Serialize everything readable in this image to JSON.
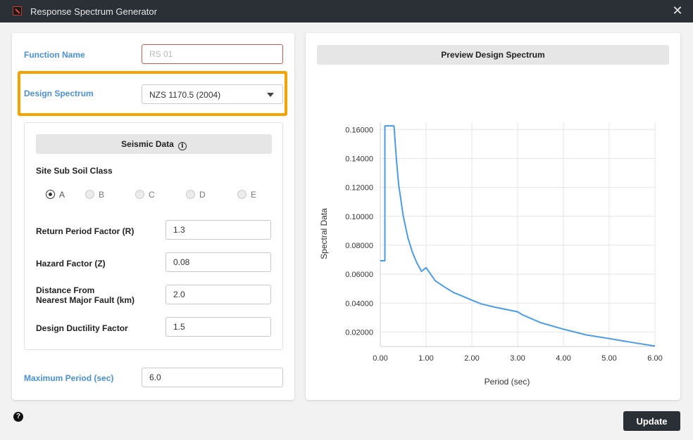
{
  "window": {
    "title": "Response Spectrum Generator",
    "close_glyph": "✕"
  },
  "form": {
    "function_name_label": "Function Name",
    "function_name_placeholder": "RS 01",
    "design_spectrum_label": "Design Spectrum",
    "design_spectrum_value": "NZS 1170.5 (2004)",
    "seismic_header": "Seismic Data",
    "site_class_label": "Site Sub Soil Class",
    "site_classes": [
      "A",
      "B",
      "C",
      "D",
      "E"
    ],
    "site_class_selected": "A",
    "return_period_label": "Return Period Factor (R)",
    "return_period_value": "1.3",
    "hazard_label": "Hazard Factor (Z)",
    "hazard_value": "0.08",
    "distance_label_line1": "Distance From",
    "distance_label_line2": "Nearest Major Fault (km)",
    "distance_value": "2.0",
    "ductility_label": "Design Ductility Factor",
    "ductility_value": "1.5",
    "max_period_label": "Maximum Period (sec)",
    "max_period_value": "6.0"
  },
  "preview": {
    "header": "Preview Design Spectrum"
  },
  "buttons": {
    "update": "Update",
    "help": "?"
  },
  "colors": {
    "accent": "#4a90d9",
    "highlight": "#f5a300",
    "line": "#4a9be8",
    "dark": "#2b3036"
  },
  "chart_data": {
    "type": "line",
    "title": "",
    "xlabel": "Period (sec)",
    "ylabel": "Spectral Data",
    "xlim": [
      0,
      6
    ],
    "ylim": [
      0.01,
      0.165
    ],
    "x_ticks": [
      0,
      1,
      2,
      3,
      4,
      5,
      6
    ],
    "x_tick_labels": [
      "0.00",
      "1.00",
      "2.00",
      "3.00",
      "4.00",
      "5.00",
      "6.00"
    ],
    "y_ticks": [
      0.02,
      0.04,
      0.06,
      0.08,
      0.1,
      0.12,
      0.14,
      0.16
    ],
    "y_tick_labels": [
      "0.02000",
      "0.04000",
      "0.06000",
      "0.08000",
      "0.10000",
      "0.12000",
      "0.14000",
      "0.16000"
    ],
    "grid": true,
    "series": [
      {
        "x": [
          0,
          0.05,
          0.1,
          0.1,
          0.3,
          0.35,
          0.4,
          0.5,
          0.6,
          0.7,
          0.8,
          0.9,
          1.0,
          1.2,
          1.4,
          1.6,
          1.8,
          2.0,
          2.2,
          2.5,
          3.0,
          3.1,
          3.5,
          4.0,
          4.5,
          5.0,
          5.5,
          6.0
        ],
        "y": [
          0.0693,
          0.0693,
          0.0693,
          0.1625,
          0.1625,
          0.1397,
          0.1222,
          0.1004,
          0.0855,
          0.0753,
          0.0677,
          0.062,
          0.0645,
          0.0555,
          0.0512,
          0.0473,
          0.0448,
          0.042,
          0.0395,
          0.0372,
          0.034,
          0.032,
          0.0265,
          0.022,
          0.018,
          0.0155,
          0.0128,
          0.0103
        ]
      }
    ]
  }
}
